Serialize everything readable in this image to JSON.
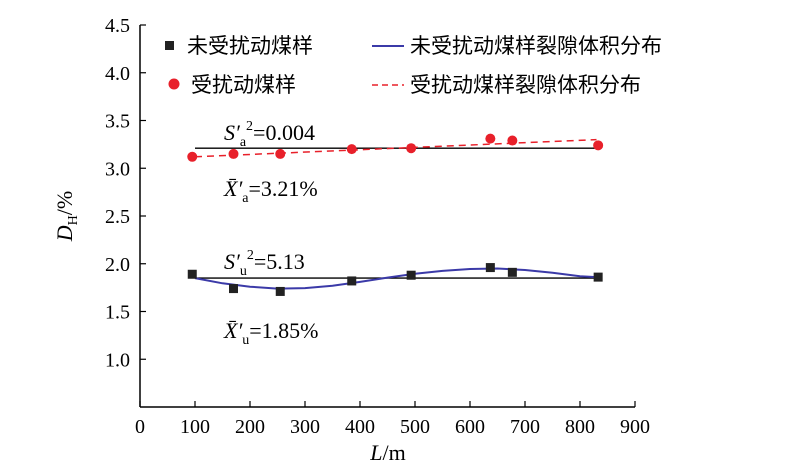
{
  "chart_data": {
    "type": "scatter",
    "xlabel_main": "L",
    "xlabel_unit": "/m",
    "ylabel_main": "D",
    "ylabel_sub": "H",
    "ylabel_unit": "/%",
    "xlim": [
      0,
      900
    ],
    "ylim": [
      0.5,
      4.5
    ],
    "x_ticks": [
      0,
      100,
      200,
      300,
      400,
      500,
      600,
      700,
      800,
      900
    ],
    "y_ticks": [
      1.0,
      1.5,
      2.0,
      2.5,
      3.0,
      3.5,
      4.0,
      4.5
    ],
    "grid": false,
    "legend_position": "top",
    "series": [
      {
        "name": "未受扰动煤样",
        "kind": "points",
        "marker": "square",
        "color": "#222222",
        "x": [
          95,
          170,
          255,
          385,
          493,
          637,
          677,
          833
        ],
        "y": [
          1.89,
          1.74,
          1.71,
          1.82,
          1.88,
          1.96,
          1.91,
          1.86
        ]
      },
      {
        "name": "未受扰动煤样裂隙体积分布",
        "kind": "line",
        "style": "solid",
        "color": "#3b3aa8",
        "x": [
          100,
          150,
          200,
          250,
          300,
          350,
          400,
          450,
          500,
          550,
          600,
          650,
          700,
          750,
          800,
          830
        ],
        "y": [
          1.85,
          1.795,
          1.76,
          1.74,
          1.745,
          1.77,
          1.81,
          1.855,
          1.895,
          1.925,
          1.945,
          1.95,
          1.935,
          1.905,
          1.87,
          1.86
        ]
      },
      {
        "name": "受扰动煤样",
        "kind": "points",
        "marker": "circle",
        "color": "#e8202a",
        "x": [
          95,
          170,
          255,
          385,
          493,
          637,
          677,
          833
        ],
        "y": [
          3.12,
          3.15,
          3.15,
          3.2,
          3.21,
          3.31,
          3.29,
          3.24
        ]
      },
      {
        "name": "受扰动煤样裂隙体积分布",
        "kind": "line",
        "style": "dashed",
        "color": "#e8202a",
        "x": [
          100,
          830
        ],
        "y": [
          3.12,
          3.3
        ]
      }
    ],
    "mean_lines": [
      {
        "y": 3.21,
        "x": [
          100,
          830
        ],
        "color": "#000000"
      },
      {
        "y": 1.85,
        "x": [
          100,
          830
        ],
        "color": "#000000"
      }
    ],
    "annotations": {
      "a_var_symbol": "S′",
      "a_var_sub": "a",
      "a_var_sup": "2",
      "a_var_value": "=0.004",
      "a_mean_symbol": "X̄′",
      "a_mean_sub": "a",
      "a_mean_value": "=3.21%",
      "u_var_symbol": "S′",
      "u_var_sub": "u",
      "u_var_sup": "2",
      "u_var_value": "=5.13",
      "u_mean_symbol": "X̄′",
      "u_mean_sub": "u",
      "u_mean_value": "=1.85%"
    }
  }
}
